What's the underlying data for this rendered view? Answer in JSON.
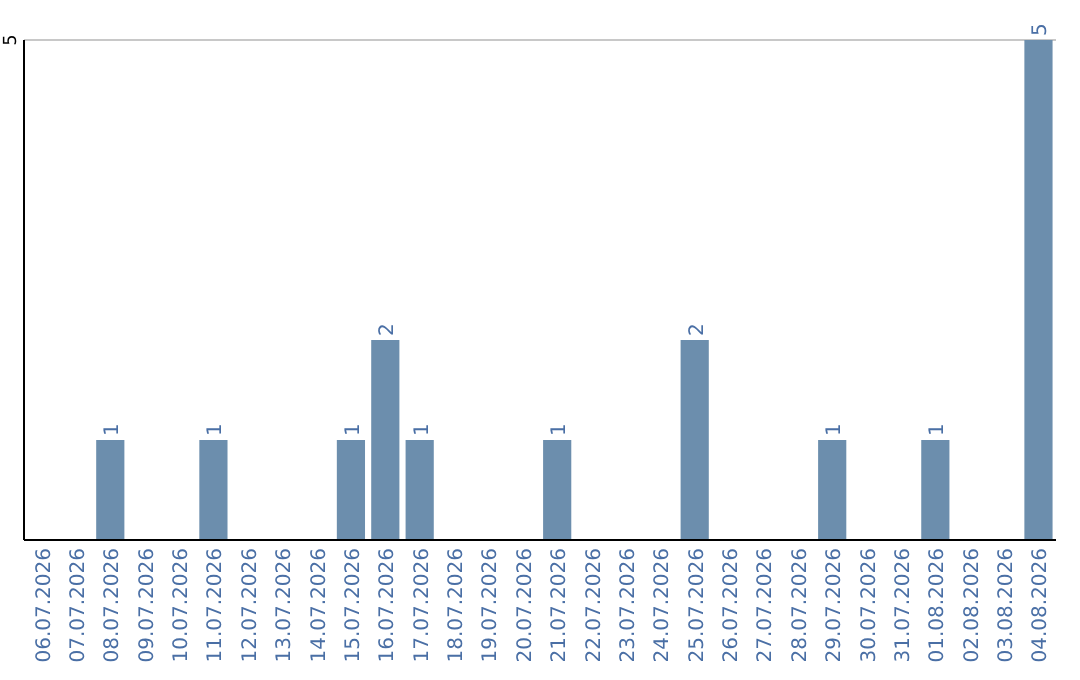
{
  "chart_data": {
    "type": "bar",
    "categories": [
      "06.07.2026",
      "07.07.2026",
      "08.07.2026",
      "09.07.2026",
      "10.07.2026",
      "11.07.2026",
      "12.07.2026",
      "13.07.2026",
      "14.07.2026",
      "15.07.2026",
      "16.07.2026",
      "17.07.2026",
      "18.07.2026",
      "19.07.2026",
      "20.07.2026",
      "21.07.2026",
      "22.07.2026",
      "23.07.2026",
      "24.07.2026",
      "25.07.2026",
      "26.07.2026",
      "27.07.2026",
      "28.07.2026",
      "29.07.2026",
      "30.07.2026",
      "31.07.2026",
      "01.08.2026",
      "02.08.2026",
      "03.08.2026",
      "04.08.2026"
    ],
    "values": [
      0,
      0,
      1,
      0,
      0,
      1,
      0,
      0,
      0,
      1,
      2,
      1,
      0,
      0,
      0,
      1,
      0,
      0,
      0,
      2,
      0,
      0,
      0,
      1,
      0,
      0,
      1,
      0,
      0,
      5
    ],
    "value_labels": [
      null,
      null,
      "1",
      null,
      null,
      "1",
      null,
      null,
      null,
      "1",
      "2",
      "1",
      null,
      null,
      null,
      "1",
      null,
      null,
      null,
      "2",
      null,
      null,
      null,
      "1",
      null,
      null,
      "1",
      null,
      null,
      "5"
    ],
    "color": "#6c8ead",
    "ylim": [
      0,
      5
    ],
    "yticks": [
      5
    ]
  }
}
